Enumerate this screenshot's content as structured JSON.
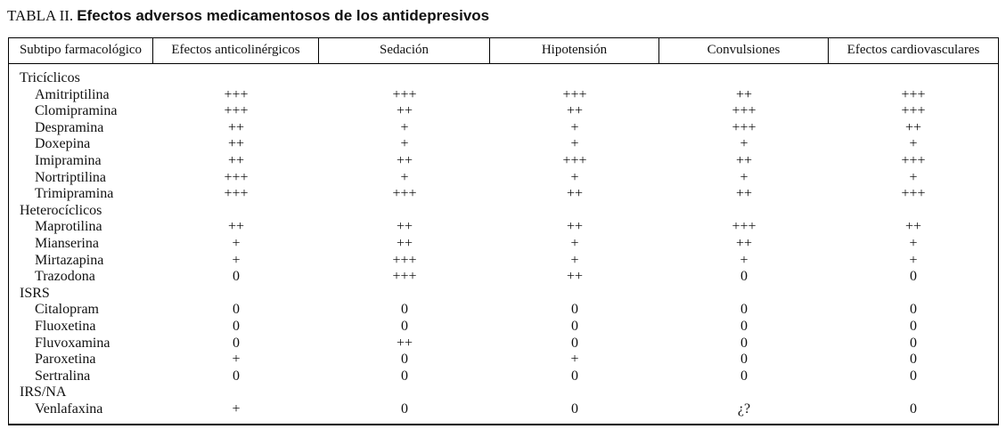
{
  "title": {
    "prefix": "TABLA II.",
    "text": "Efectos adversos medicamentosos de los antidepresivos"
  },
  "table": {
    "columns": [
      "Subtipo farmacológico",
      "Efectos anticolinérgicos",
      "Sedación",
      "Hipotensión",
      "Convulsiones",
      "Efectos cardiovasculares"
    ],
    "groups": [
      {
        "label": "Tricíclicos",
        "rows": [
          {
            "name": "Amitriptilina",
            "values": [
              "+++",
              "+++",
              "+++",
              "++",
              "+++"
            ]
          },
          {
            "name": "Clomipramina",
            "values": [
              "+++",
              "++",
              "++",
              "+++",
              "+++"
            ]
          },
          {
            "name": "Despramina",
            "values": [
              "++",
              "+",
              "+",
              "+++",
              "++"
            ]
          },
          {
            "name": "Doxepina",
            "values": [
              "++",
              "+",
              "+",
              "+",
              "+"
            ]
          },
          {
            "name": "Imipramina",
            "values": [
              "++",
              "++",
              "+++",
              "++",
              "+++"
            ]
          },
          {
            "name": "Nortriptilina",
            "values": [
              "+++",
              "+",
              "+",
              "+",
              "+"
            ]
          },
          {
            "name": "Trimipramina",
            "values": [
              "+++",
              "+++",
              "++",
              "++",
              "+++"
            ]
          }
        ]
      },
      {
        "label": "Heterocíclicos",
        "rows": [
          {
            "name": "Maprotilina",
            "values": [
              "++",
              "++",
              "++",
              "+++",
              "++"
            ]
          },
          {
            "name": "Mianserina",
            "values": [
              "+",
              "++",
              "+",
              "++",
              "+"
            ]
          },
          {
            "name": "Mirtazapina",
            "values": [
              "+",
              "+++",
              "+",
              "+",
              "+"
            ]
          },
          {
            "name": "Trazodona",
            "values": [
              "0",
              "+++",
              "++",
              "0",
              "0"
            ]
          }
        ]
      },
      {
        "label": "ISRS",
        "rows": [
          {
            "name": "Citalopram",
            "values": [
              "0",
              "0",
              "0",
              "0",
              "0"
            ]
          },
          {
            "name": "Fluoxetina",
            "values": [
              "0",
              "0",
              "0",
              "0",
              "0"
            ]
          },
          {
            "name": "Fluvoxamina",
            "values": [
              "0",
              "++",
              "0",
              "0",
              "0"
            ]
          },
          {
            "name": "Paroxetina",
            "values": [
              "+",
              "0",
              "+",
              "0",
              "0"
            ]
          },
          {
            "name": "Sertralina",
            "values": [
              "0",
              "0",
              "0",
              "0",
              "0"
            ]
          }
        ]
      },
      {
        "label": "IRS/NA",
        "rows": [
          {
            "name": "Venlafaxina",
            "values": [
              "+",
              "0",
              "0",
              "¿?",
              "0"
            ]
          }
        ]
      }
    ]
  },
  "colors": {
    "text": "#111111",
    "border": "#000000",
    "background": "#ffffff"
  }
}
